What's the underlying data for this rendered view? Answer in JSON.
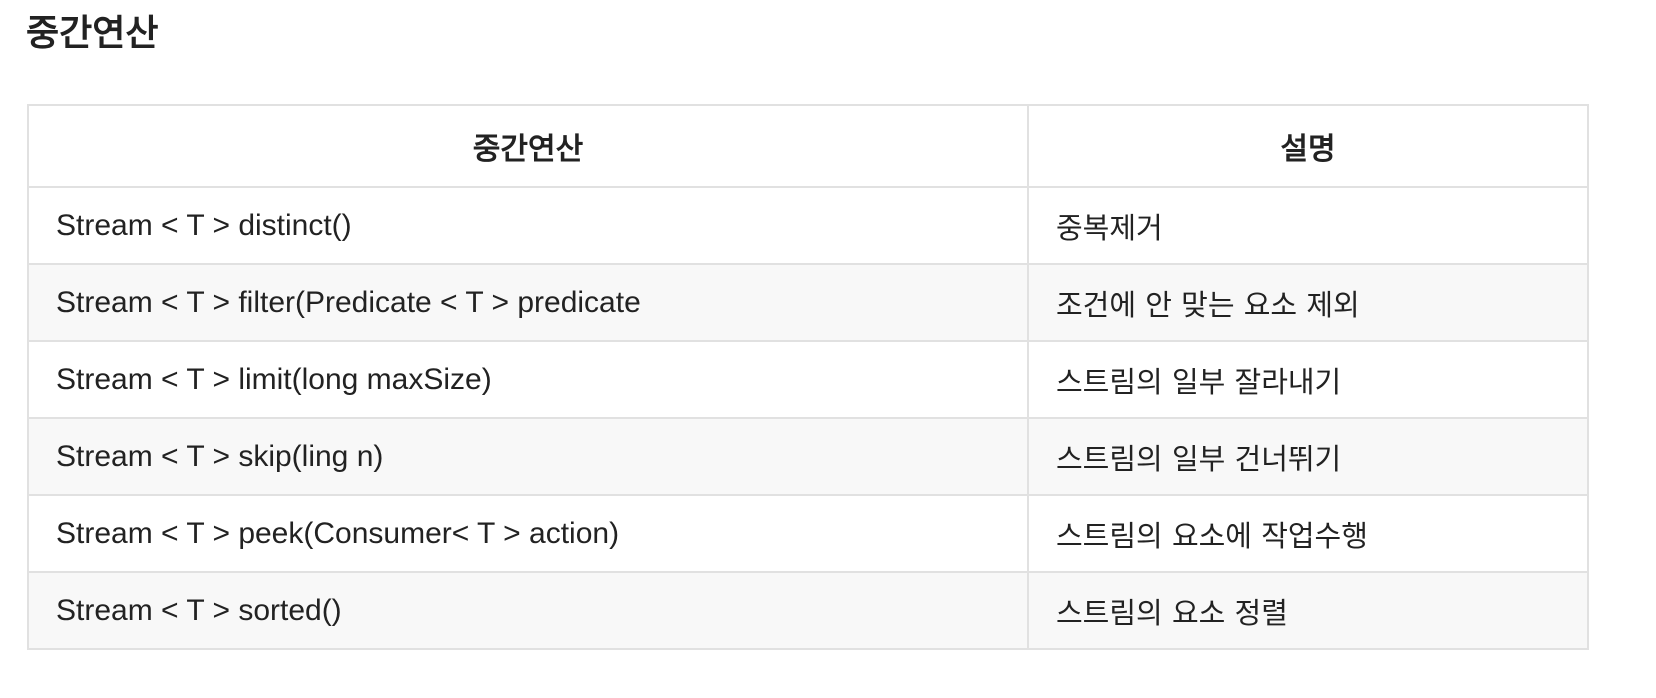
{
  "heading": "중간연산",
  "table": {
    "headers": [
      "중간연산",
      "설명"
    ],
    "rows": [
      {
        "operation": "Stream < T > distinct()",
        "description": "중복제거"
      },
      {
        "operation": "Stream < T > filter(Predicate < T > predicate",
        "description": "조건에 안 맞는 요소 제외"
      },
      {
        "operation": "Stream < T > limit(long maxSize)",
        "description": "스트림의 일부 잘라내기"
      },
      {
        "operation": "Stream < T > skip(ling n)",
        "description": "스트림의 일부 건너뛰기"
      },
      {
        "operation": "Stream < T > peek(Consumer< T > action)",
        "description": "스트림의 요소에 작업수행"
      },
      {
        "operation": "Stream < T > sorted()",
        "description": "스트림의 요소 정렬"
      }
    ]
  }
}
